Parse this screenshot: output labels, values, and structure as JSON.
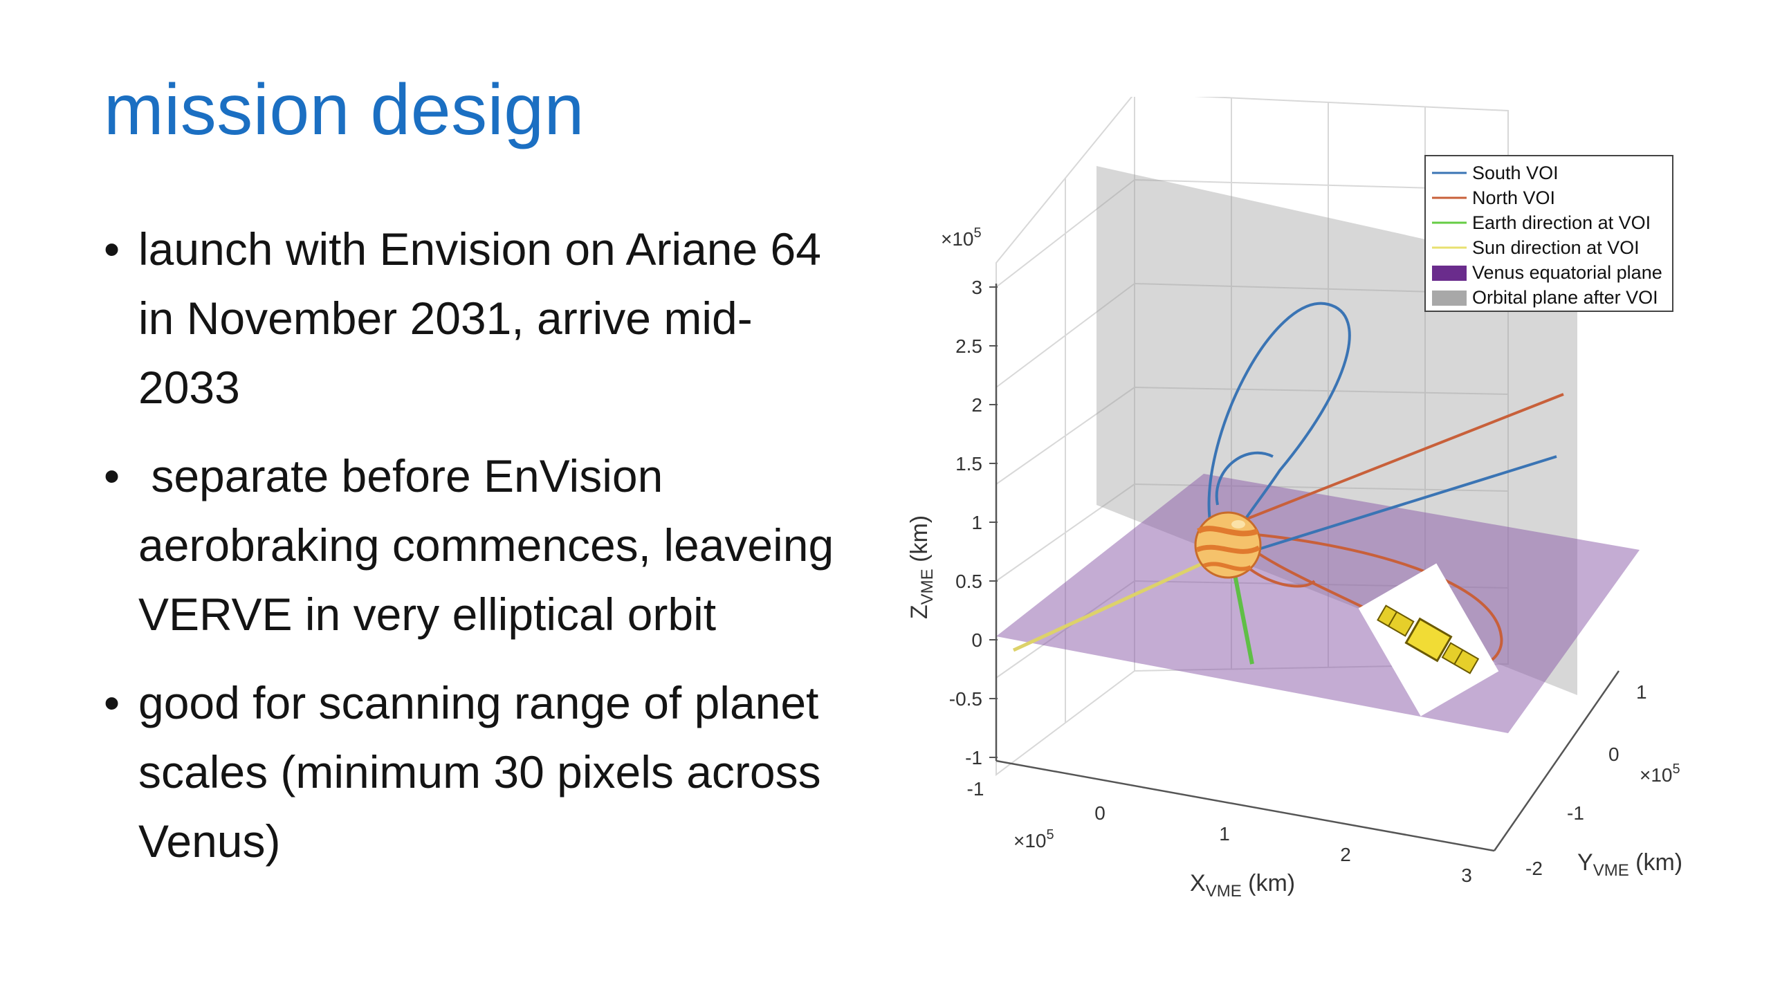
{
  "slide": {
    "title": "mission design",
    "bullets": [
      "launch with Envision on Ariane 64 in November 2031, arrive mid-2033",
      " separate before EnVision aerobraking commences, leaveing VERVE in very elliptical orbit",
      "good for scanning range of planet scales (minimum 30 pixels across Venus)"
    ],
    "bullet_char": "•"
  },
  "figure": {
    "legend": [
      {
        "label": "South VOI",
        "color": "#3a74b4"
      },
      {
        "label": "North VOI",
        "color": "#c8603a"
      },
      {
        "label": "Earth direction at VOI",
        "color": "#66cc44"
      },
      {
        "label": "Sun direction at VOI",
        "color": "#e8e070"
      },
      {
        "label": "Venus equatorial plane",
        "color": "#6a2c8c"
      },
      {
        "label": "Orbital plane after VOI",
        "color": "#a8a8a8"
      }
    ],
    "z_axis": {
      "label_main": "Z",
      "label_sub": "VME",
      "label_unit": " (km)",
      "multiplier_base": "×10",
      "multiplier_exp": "5",
      "ticks": [
        "3",
        "2.5",
        "2",
        "1.5",
        "1",
        "0.5",
        "0",
        "-0.5",
        "-1"
      ]
    },
    "x_axis": {
      "label_main": "X",
      "label_sub": "VME",
      "label_unit": " (km)",
      "multiplier_base": "×10",
      "multiplier_exp": "5",
      "ticks": [
        "-1",
        "0",
        "1",
        "2",
        "3"
      ]
    },
    "y_axis": {
      "label_main": "Y",
      "label_sub": "VME",
      "label_unit": " (km)",
      "multiplier_base": "×10",
      "multiplier_exp": "5",
      "ticks": [
        "1",
        "0",
        "-1",
        "-2"
      ]
    }
  }
}
